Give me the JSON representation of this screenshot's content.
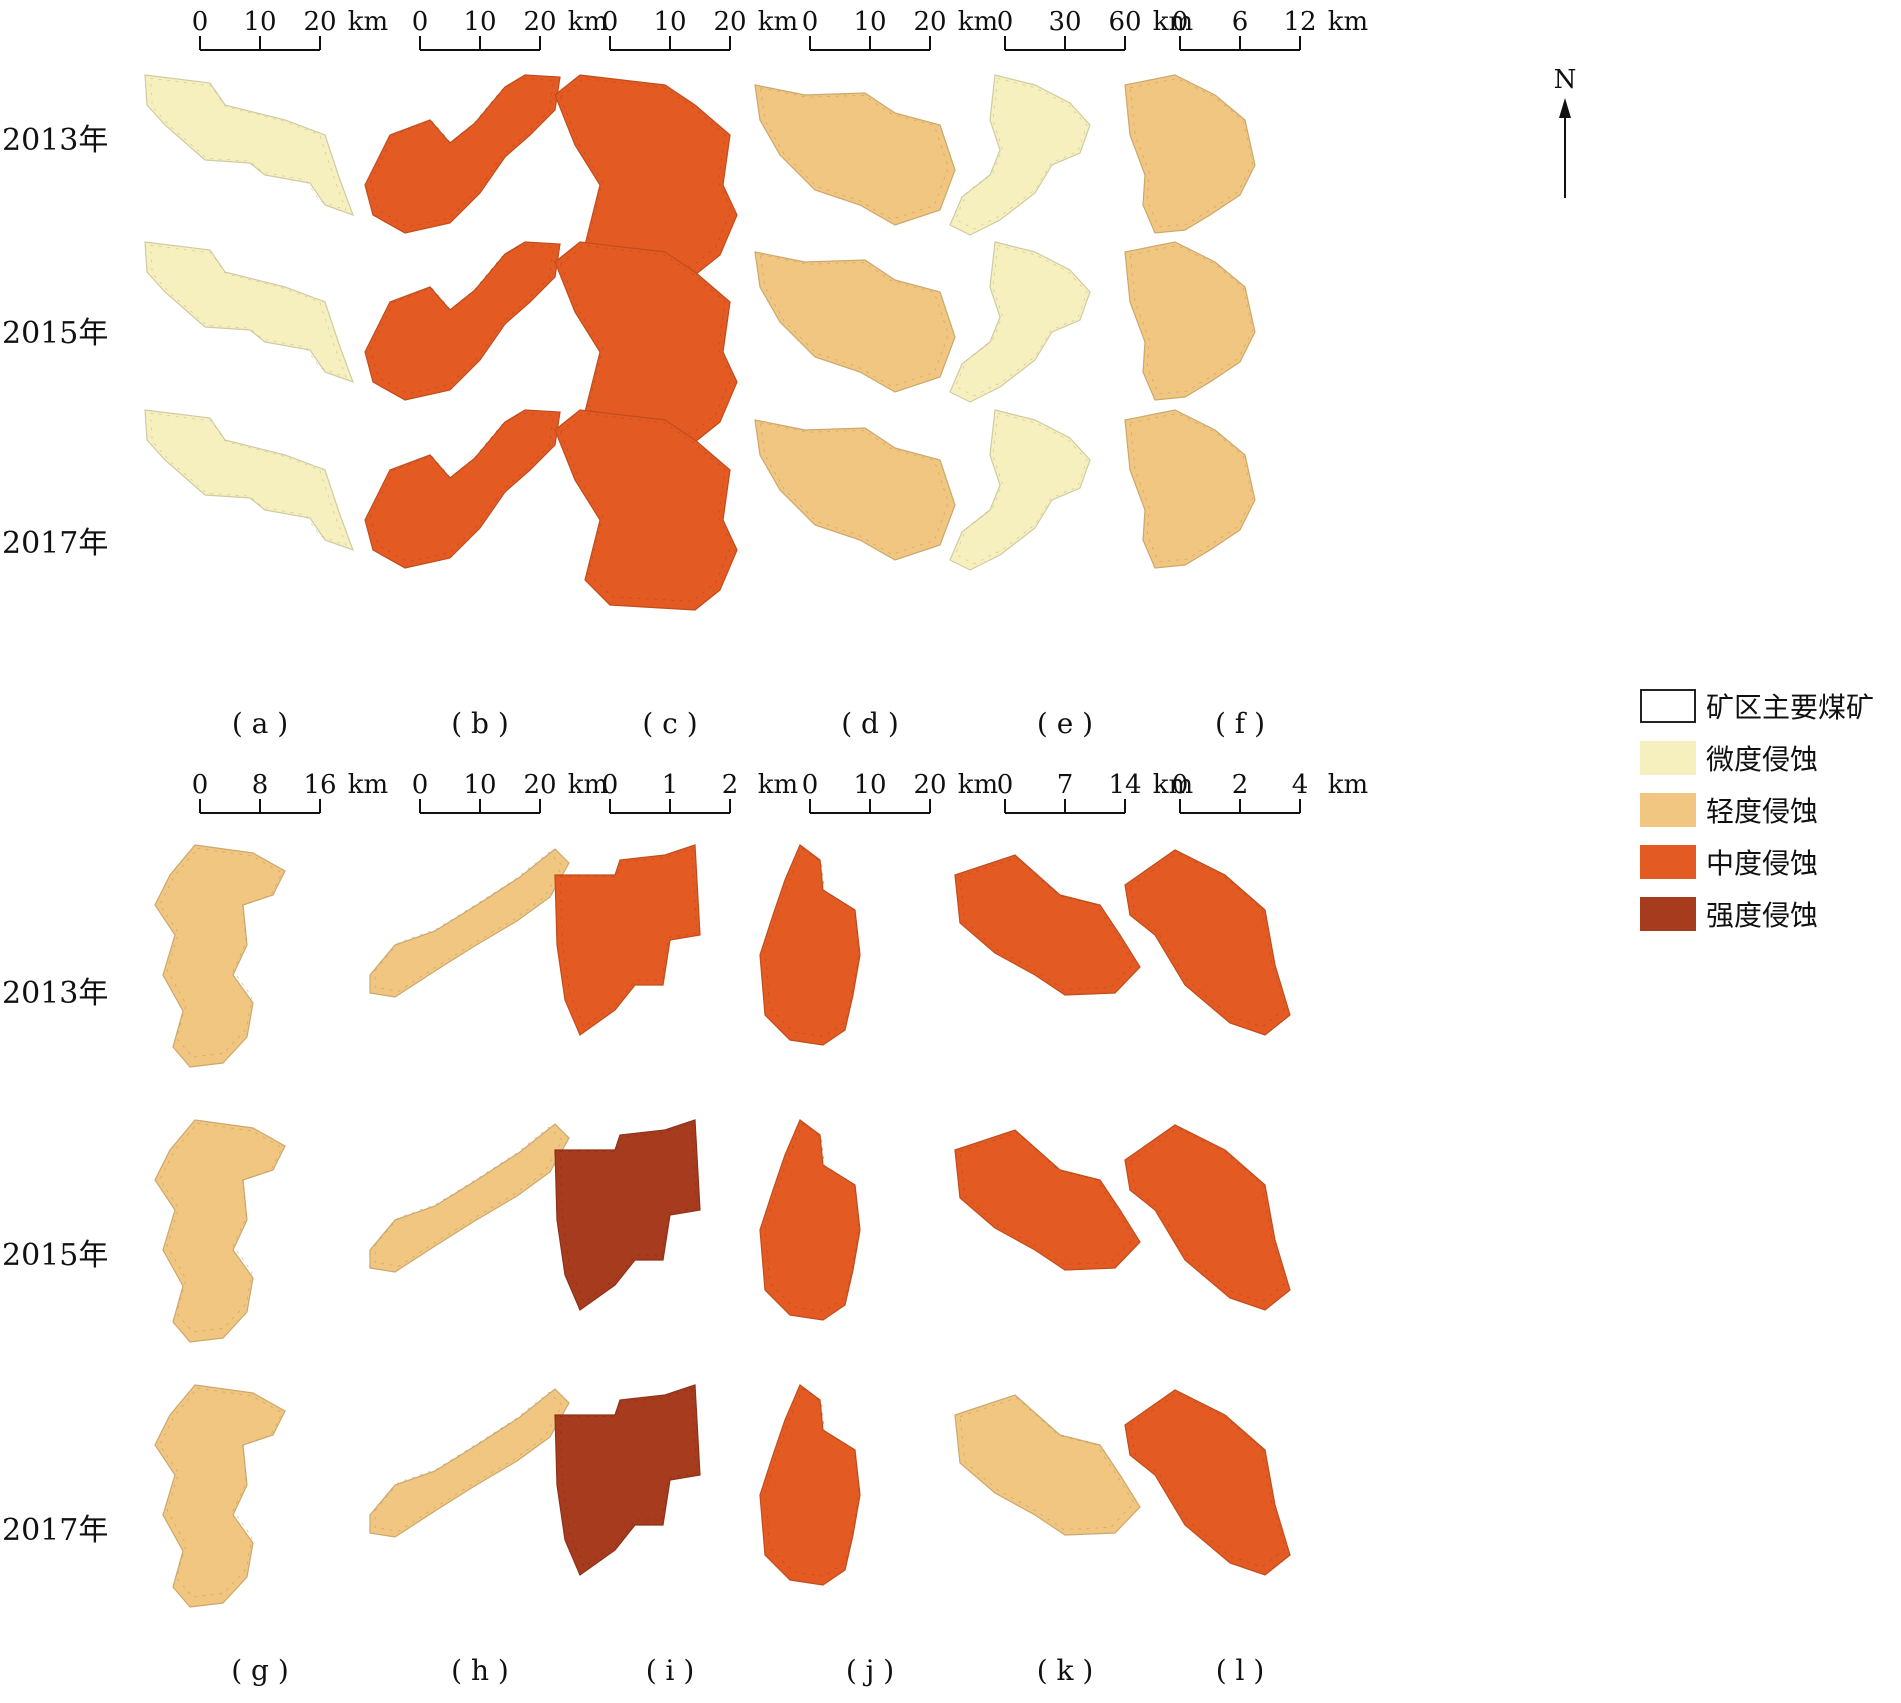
{
  "map": {
    "years": [
      "2013年",
      "2015年",
      "2017年"
    ],
    "unit": "km",
    "north_label": "N",
    "panels": [
      {
        "id": "a",
        "caption": "( a )",
        "scale_ticks": [
          "0",
          "10",
          "20"
        ],
        "levels": {
          "2013": "微度侵蚀",
          "2015": "微度侵蚀",
          "2017": "微度侵蚀"
        }
      },
      {
        "id": "b",
        "caption": "( b )",
        "scale_ticks": [
          "0",
          "10",
          "20"
        ],
        "levels": {
          "2013": "中度侵蚀",
          "2015": "中度侵蚀",
          "2017": "中度侵蚀"
        }
      },
      {
        "id": "c",
        "caption": "( c )",
        "scale_ticks": [
          "0",
          "10",
          "20"
        ],
        "levels": {
          "2013": "中度侵蚀",
          "2015": "中度侵蚀",
          "2017": "中度侵蚀"
        }
      },
      {
        "id": "d",
        "caption": "( d )",
        "scale_ticks": [
          "0",
          "10",
          "20"
        ],
        "levels": {
          "2013": "轻度侵蚀",
          "2015": "轻度侵蚀",
          "2017": "轻度侵蚀"
        }
      },
      {
        "id": "e",
        "caption": "( e )",
        "scale_ticks": [
          "0",
          "30",
          "60"
        ],
        "levels": {
          "2013": "微度侵蚀",
          "2015": "微度侵蚀",
          "2017": "微度侵蚀"
        }
      },
      {
        "id": "f",
        "caption": "( f )",
        "scale_ticks": [
          "0",
          "6",
          "12"
        ],
        "levels": {
          "2013": "轻度侵蚀",
          "2015": "轻度侵蚀",
          "2017": "轻度侵蚀"
        }
      },
      {
        "id": "g",
        "caption": "( g )",
        "scale_ticks": [
          "0",
          "8",
          "16"
        ],
        "levels": {
          "2013": "轻度侵蚀",
          "2015": "轻度侵蚀",
          "2017": "轻度侵蚀"
        }
      },
      {
        "id": "h",
        "caption": "( h )",
        "scale_ticks": [
          "0",
          "10",
          "20"
        ],
        "levels": {
          "2013": "轻度侵蚀",
          "2015": "轻度侵蚀",
          "2017": "轻度侵蚀"
        }
      },
      {
        "id": "i",
        "caption": "( i )",
        "scale_ticks": [
          "0",
          "1",
          "2"
        ],
        "levels": {
          "2013": "中度侵蚀",
          "2015": "强度侵蚀",
          "2017": "强度侵蚀"
        }
      },
      {
        "id": "j",
        "caption": "( j )",
        "scale_ticks": [
          "0",
          "10",
          "20"
        ],
        "levels": {
          "2013": "中度侵蚀",
          "2015": "中度侵蚀",
          "2017": "中度侵蚀"
        }
      },
      {
        "id": "k",
        "caption": "( k )",
        "scale_ticks": [
          "0",
          "7",
          "14"
        ],
        "levels": {
          "2013": "中度侵蚀",
          "2015": "中度侵蚀",
          "2017": "轻度侵蚀"
        }
      },
      {
        "id": "l",
        "caption": "( l )",
        "scale_ticks": [
          "0",
          "2",
          "4"
        ],
        "levels": {
          "2013": "中度侵蚀",
          "2015": "中度侵蚀",
          "2017": "中度侵蚀"
        }
      }
    ]
  },
  "legend": {
    "items": [
      {
        "key": "mine",
        "label": "矿区主要煤矿",
        "color": "#ffffff",
        "border": "#222222"
      },
      {
        "key": "slight",
        "label": "微度侵蚀",
        "color": "#f6efbe"
      },
      {
        "key": "light",
        "label": "轻度侵蚀",
        "color": "#f0c680"
      },
      {
        "key": "moderate",
        "label": "中度侵蚀",
        "color": "#e35a22"
      },
      {
        "key": "severe",
        "label": "强度侵蚀",
        "color": "#a63b1e"
      }
    ]
  }
}
